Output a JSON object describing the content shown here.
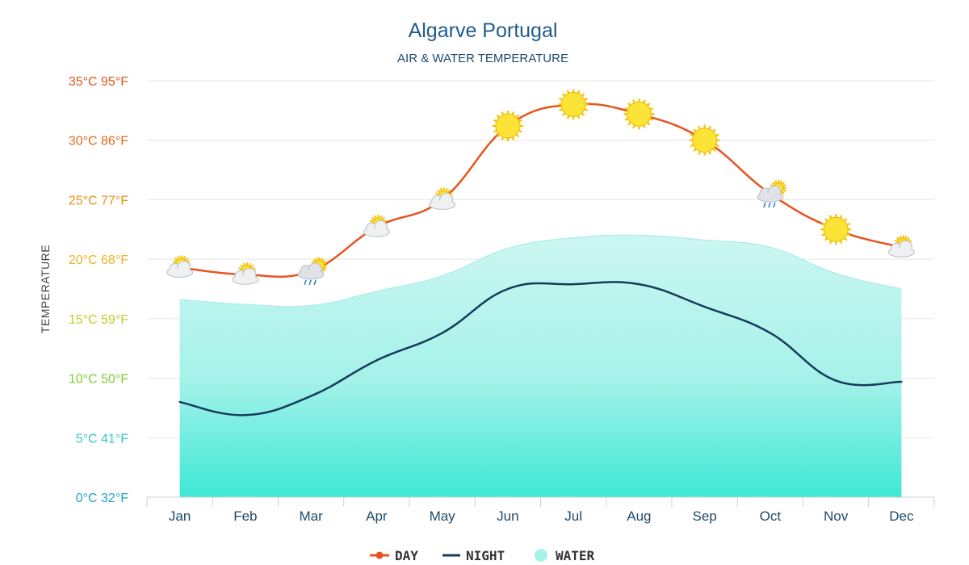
{
  "chart_data": {
    "type": "line",
    "title": "Algarve Portugal",
    "subtitle": "AIR & WATER TEMPERATURE",
    "ylabel": "TEMPERATURE",
    "categories": [
      "Jan",
      "Feb",
      "Mar",
      "Apr",
      "May",
      "Jun",
      "Jul",
      "Aug",
      "Sep",
      "Oct",
      "Nov",
      "Dec"
    ],
    "ylim": [
      0,
      35
    ],
    "y_ticks": [
      {
        "value": 35,
        "label": "35°C 95°F",
        "color": "#e0561f"
      },
      {
        "value": 30,
        "label": "30°C 86°F",
        "color": "#e06a1c"
      },
      {
        "value": 25,
        "label": "25°C 77°F",
        "color": "#ec8f1a"
      },
      {
        "value": 20,
        "label": "20°C 68°F",
        "color": "#f0b323"
      },
      {
        "value": 15,
        "label": "15°C 59°F",
        "color": "#c3cc25"
      },
      {
        "value": 10,
        "label": "10°C 50°F",
        "color": "#7ccf2e"
      },
      {
        "value": 5,
        "label": "5°C 41°F",
        "color": "#35c9c0"
      },
      {
        "value": 0,
        "label": "0°C 32°F",
        "color": "#1ea6c4"
      }
    ],
    "grid": true,
    "legend_position": "bottom",
    "series": [
      {
        "name": "DAY",
        "color": "#e8531f",
        "values": [
          19.3,
          18.7,
          19.0,
          22.7,
          25.0,
          31.2,
          33.0,
          32.2,
          30.0,
          25.5,
          22.5,
          21.0
        ]
      },
      {
        "name": "NIGHT",
        "color": "#173b5c",
        "values": [
          8.0,
          6.9,
          8.5,
          11.5,
          13.8,
          17.5,
          17.9,
          17.9,
          16.0,
          13.8,
          9.8,
          9.7
        ]
      },
      {
        "name": "WATER",
        "color": "#8ff0e6",
        "values": [
          16.6,
          16.2,
          16.1,
          17.3,
          18.6,
          20.9,
          21.8,
          22.0,
          21.6,
          21.0,
          18.8,
          17.5
        ]
      }
    ],
    "weather_icons": [
      "sun-cloud-icon",
      "sun-cloud-icon",
      "rain-cloud-icon",
      "sun-cloud-icon",
      "sun-cloud-icon",
      "sun-icon",
      "sun-icon",
      "sun-icon",
      "sun-icon",
      "rain-cloud-icon",
      "sun-icon",
      "sun-cloud-icon"
    ]
  }
}
